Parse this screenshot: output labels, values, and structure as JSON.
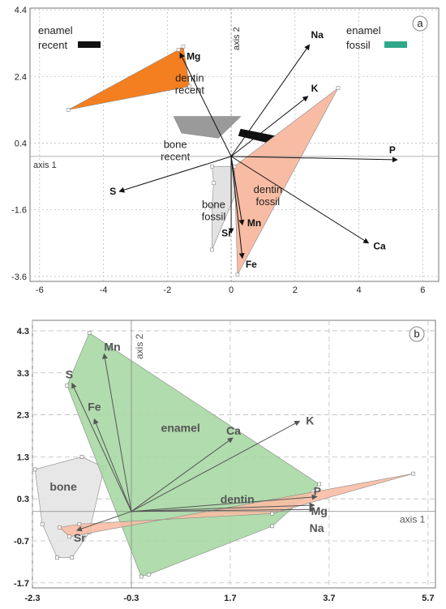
{
  "chart_data": [
    {
      "panel": "a",
      "type": "scatter",
      "xlabel": "axis 1",
      "ylabel": "axis 2",
      "xlim": [
        -6.3,
        6.5
      ],
      "ylim": [
        -3.75,
        4.45
      ],
      "xticks": [
        "-6",
        "-4",
        "-2",
        "0",
        "2",
        "4",
        "6"
      ],
      "yticks": [
        "4.4",
        "2.4",
        "0.4",
        "-1.6",
        "-3.6"
      ],
      "colors": {
        "dentin_recent": "#f47f20",
        "bone_recent": "#9a9a9a",
        "enamel_recent": "#111111",
        "enamel_fossil": "#2fa88a",
        "bone_fossil": "#e2e2e2",
        "dentin_fossil": "#f8bca4"
      },
      "legend": [
        {
          "line1": "enamel",
          "line2": "recent",
          "color": "#111111"
        },
        {
          "line1": "enamel",
          "line2": "fossil",
          "color": "#2fa88a"
        }
      ],
      "regions": [
        {
          "key": "dentin_recent",
          "line1": "dentin",
          "line2": "recent",
          "lx": -1.3,
          "ly": 2.25,
          "points": [
            [
              -5.1,
              1.4
            ],
            [
              -1.65,
              3.2
            ],
            [
              -1.5,
              3.3
            ],
            [
              -1.3,
              2.1
            ]
          ]
        },
        {
          "key": "bone_recent",
          "line1": "bone",
          "line2": "recent",
          "lx": -1.75,
          "ly": 0.25,
          "points": [
            [
              -1.8,
              1.2
            ],
            [
              0.3,
              1.2
            ],
            [
              -0.4,
              0.55
            ],
            [
              -1.55,
              0.7
            ]
          ]
        },
        {
          "key": "enamel_recent",
          "line1": "",
          "line2": "",
          "points": [
            [
              0.3,
              0.82
            ],
            [
              1.7,
              0.55
            ],
            [
              1.63,
              0.3
            ],
            [
              0.23,
              0.62
            ]
          ]
        },
        {
          "key": "enamel_fossil",
          "line1": "",
          "line2": "",
          "points": [
            [
              0.3,
              -0.25
            ],
            [
              2.55,
              1.03
            ],
            [
              2.6,
              0.9
            ],
            [
              0.85,
              -0.15
            ]
          ]
        },
        {
          "key": "bone_fossil",
          "line1": "bone",
          "line2": "fossil",
          "lx": -0.55,
          "ly": -1.55,
          "points": [
            [
              -0.6,
              -0.3
            ],
            [
              0.05,
              -0.3
            ],
            [
              0.45,
              -0.6
            ],
            [
              0.15,
              -1.1
            ],
            [
              -0.6,
              -2.8
            ],
            [
              -0.6,
              -1.5
            ],
            [
              -0.55,
              -0.8
            ]
          ]
        },
        {
          "key": "dentin_fossil",
          "line1": "dentin",
          "line2": "fossil",
          "lx": 1.15,
          "ly": -1.1,
          "points": [
            [
              0.1,
              -0.3
            ],
            [
              3.35,
              2.05
            ],
            [
              0.2,
              -3.55
            ]
          ]
        }
      ],
      "vectors": [
        {
          "name": "Na",
          "x": 2.45,
          "y": 3.35
        },
        {
          "name": "K",
          "x": 2.4,
          "y": 1.8
        },
        {
          "name": "P",
          "x": 5.2,
          "y": -0.1
        },
        {
          "name": "Ca",
          "x": 4.3,
          "y": -2.6
        },
        {
          "name": "Fe",
          "x": 0.35,
          "y": -3.05
        },
        {
          "name": "Mn",
          "x": 0.35,
          "y": -2.05
        },
        {
          "name": "Sr",
          "x": 0.0,
          "y": -2.3
        },
        {
          "name": "S",
          "x": -3.5,
          "y": -1.05
        },
        {
          "name": "Mg",
          "x": -1.6,
          "y": 3.1
        }
      ]
    },
    {
      "panel": "b",
      "type": "scatter",
      "xlabel": "axis 1",
      "ylabel": "axis 2",
      "xlim": [
        -2.3,
        5.85
      ],
      "ylim": [
        -1.82,
        4.55
      ],
      "xticks": [
        "-2.3",
        "-0.3",
        "1.7",
        "3.7",
        "5.7"
      ],
      "yticks": [
        "4.3",
        "3.3",
        "2.3",
        "1.3",
        "0.3",
        "-0.7",
        "-1.7"
      ],
      "colors": {
        "enamel": "#a9d8a4",
        "bone": "#e4e4e4",
        "dentin": "#f8bca4"
      },
      "regions": [
        {
          "key": "bone",
          "line1": "bone",
          "lx": -1.95,
          "ly": 0.5,
          "points": [
            [
              -2.25,
              1.0
            ],
            [
              -1.3,
              1.3
            ],
            [
              -0.85,
              1.05
            ],
            [
              -1.15,
              -0.5
            ],
            [
              -1.5,
              -1.1
            ],
            [
              -1.8,
              -1.1
            ],
            [
              -2.1,
              -0.3
            ]
          ]
        },
        {
          "key": "enamel",
          "line1": "enamel",
          "lx": 0.3,
          "ly": 1.9,
          "points": [
            [
              -1.15,
              4.25
            ],
            [
              3.5,
              0.65
            ],
            [
              2.55,
              -0.35
            ],
            [
              0.05,
              -1.5
            ],
            [
              -0.1,
              -1.55
            ],
            [
              -1.6,
              3.0
            ]
          ]
        },
        {
          "key": "dentin",
          "line1": "dentin",
          "lx": 1.5,
          "ly": 0.2,
          "points": [
            [
              -1.55,
              -0.6
            ],
            [
              5.4,
              0.9
            ],
            [
              2.55,
              -0.05
            ],
            [
              -1.35,
              -0.3
            ],
            [
              -1.75,
              -0.38
            ]
          ]
        }
      ],
      "vectors": [
        {
          "name": "S",
          "x": -1.5,
          "y": 3.05
        },
        {
          "name": "Mn",
          "x": -0.85,
          "y": 3.75
        },
        {
          "name": "Fe",
          "x": -1.05,
          "y": 2.2
        },
        {
          "name": "Ca",
          "x": 1.75,
          "y": 1.75
        },
        {
          "name": "K",
          "x": 3.1,
          "y": 2.15
        },
        {
          "name": "P",
          "x": 3.45,
          "y": 0.35
        },
        {
          "name": "Mg",
          "x": 3.4,
          "y": 0.15
        },
        {
          "name": "Na",
          "x": 3.4,
          "y": 0.05
        },
        {
          "name": "Sr",
          "x": -1.4,
          "y": -0.45
        }
      ]
    }
  ]
}
